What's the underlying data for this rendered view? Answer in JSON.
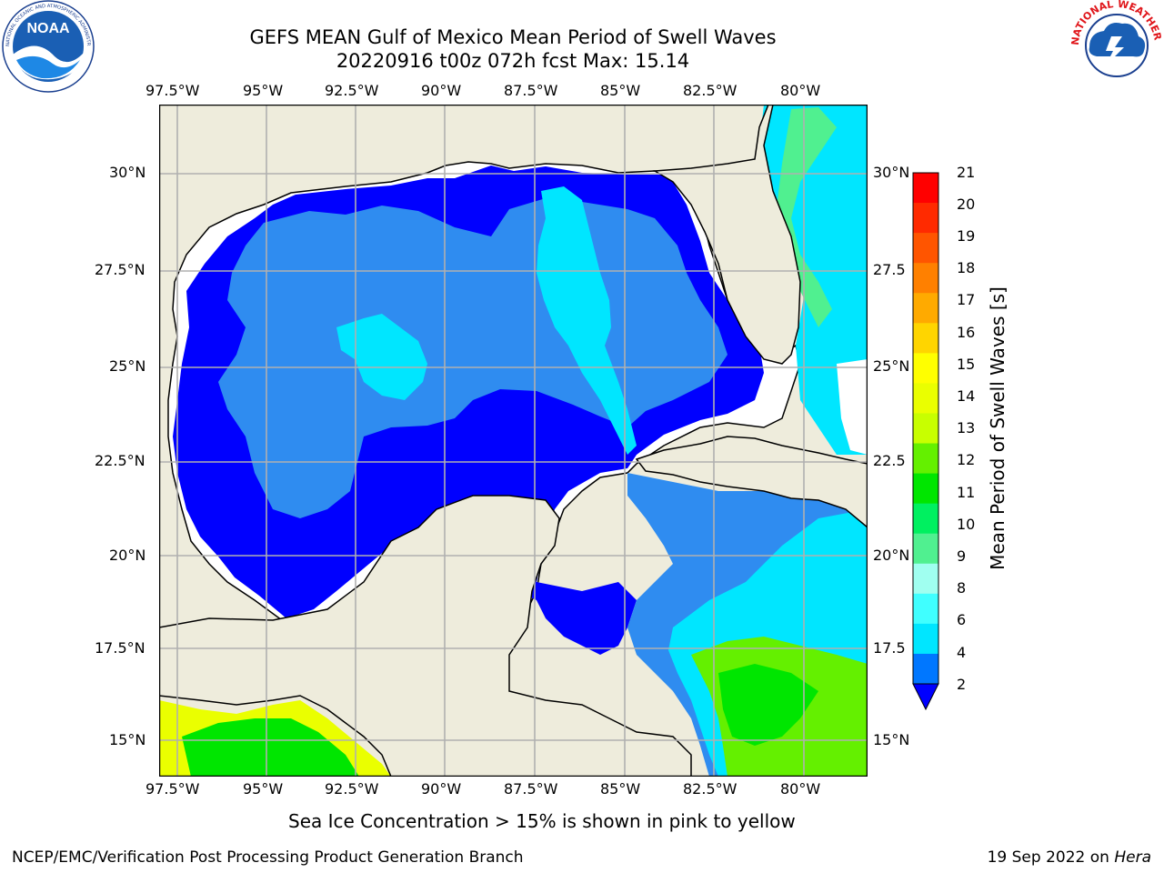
{
  "title": {
    "line1": "GEFS MEAN Gulf of Mexico Mean Period of Swell Waves",
    "line2": "20220916 t00z 072h fcst   Max: 15.14"
  },
  "logos": {
    "left": {
      "name": "noaa-logo",
      "text": "NOAA",
      "ring_text": "NATIONAL OCEANIC AND ATMOSPHERIC ADMINISTRATION · U.S. DEPARTMENT OF COMMERCE"
    },
    "right": {
      "name": "nws-logo",
      "ring_text": "NATIONAL WEATHER SERVICE"
    }
  },
  "map": {
    "lon_labels": [
      "97.5°W",
      "95°W",
      "92.5°W",
      "90°W",
      "87.5°W",
      "85°W",
      "82.5°W",
      "80°W"
    ],
    "lat_labels": [
      "30°N",
      "27.5°N",
      "25°N",
      "22.5°N",
      "20°N",
      "17.5°N",
      "15°N"
    ],
    "lat_labels_right": [
      "30°N",
      "27.5",
      "25°N",
      "22.5",
      "20°N",
      "17.5",
      "15°N"
    ],
    "land_color": "#eeecdc",
    "grid_color": "#b0b0b0"
  },
  "colorbar": {
    "label": "Mean Period of Swell Waves [s]",
    "ticks": [
      "21",
      "20",
      "19",
      "18",
      "17",
      "16",
      "15",
      "14",
      "13",
      "12",
      "11",
      "10",
      "9",
      "8",
      "6",
      "4",
      "2"
    ],
    "colors": [
      "#ff0000",
      "#ff2a00",
      "#ff5500",
      "#ff8000",
      "#ffaa00",
      "#ffd500",
      "#ffff00",
      "#eaff00",
      "#c8ff00",
      "#64f000",
      "#00e600",
      "#00f060",
      "#50f090",
      "#a0fff0",
      "#40ffff",
      "#00e6ff",
      "#0077ff"
    ],
    "extend_color": "#0000ff"
  },
  "legend_note": "Sea Ice Concentration > 15% is shown in pink to yellow",
  "footer": {
    "left": "NCEP/EMC/Verification Post Processing Product Generation Branch",
    "right_prefix": "19 Sep 2022 on ",
    "right_host": "Hera"
  }
}
